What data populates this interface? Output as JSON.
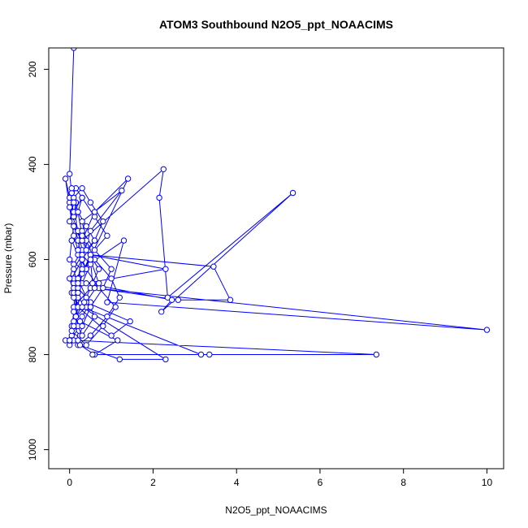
{
  "chart_data": {
    "type": "line",
    "title": "ATOM3 Southbound N2O5_ppt_NOAACIMS",
    "xlabel": "N2O5_ppt_NOAACIMS",
    "ylabel": "Pressure (mbar)",
    "xlim": [
      -0.5,
      10.4
    ],
    "ylim": [
      1040,
      155
    ],
    "y_reversed": true,
    "x_ticks": [
      0,
      2,
      4,
      6,
      8,
      10
    ],
    "x_tick_labels": [
      "0",
      "2",
      "4",
      "6",
      "8",
      "10"
    ],
    "y_ticks": [
      200,
      400,
      600,
      800,
      1000
    ],
    "y_tick_labels": [
      "200",
      "400",
      "600",
      "800",
      "1000"
    ],
    "grid": false,
    "legend": "none",
    "series": [
      {
        "color": "#0000ff",
        "marker": "open-circle",
        "x": [
          0.1,
          0.0,
          0.05,
          0.15,
          0.1,
          0.2,
          0.05,
          0.0,
          0.3,
          0.1,
          0.2,
          0.4,
          0.15,
          0.05,
          0.25,
          0.0,
          0.1,
          0.2,
          0.1,
          0.05,
          0.3,
          0.2,
          0.1,
          0.0,
          0.15,
          0.3,
          0.2,
          0.1,
          0.05,
          0.2,
          0.4,
          0.1,
          0.05,
          0.2,
          0.15,
          0.1,
          0.3,
          0.5,
          0.2,
          0.1,
          0.05,
          0.0,
          -0.1,
          0.0,
          0.1,
          0.2,
          0.3,
          0.1,
          0.0,
          0.1,
          0.2,
          0.1,
          0.05,
          0.3,
          0.5,
          0.2,
          0.1,
          0.3,
          0.6,
          0.4,
          0.2,
          0.1,
          0.3,
          0.5,
          0.8,
          0.6,
          0.3,
          0.2,
          0.4,
          0.6,
          0.3,
          0.2,
          0.1,
          0.5,
          0.7,
          0.4,
          0.2,
          0.1,
          0.3,
          0.6,
          0.9,
          0.5,
          0.3,
          0.2,
          0.1,
          0.05,
          0.4,
          0.8,
          1.1,
          0.7,
          0.4,
          0.2,
          0.3,
          0.6,
          1.0,
          0.8,
          0.5,
          0.3,
          0.2,
          0.5,
          0.9,
          1.2,
          1.0,
          0.6,
          0.4,
          0.3,
          1.25,
          0.5,
          0.3,
          0.2,
          1.4,
          0.6,
          0.3,
          2.25,
          2.15,
          2.35,
          5.35,
          2.2,
          2.45,
          0.4,
          2.3,
          0.5,
          3.45,
          3.85,
          2.6,
          0.6,
          10.0,
          0.9,
          1.3,
          0.3,
          0.2,
          1.0,
          1.45,
          0.4,
          0.7,
          0.5,
          0.3,
          0.0,
          0.1,
          0.05,
          0.2,
          0.3,
          0.5,
          0.55,
          0.35,
          0.15,
          0.1,
          0.0,
          -0.1,
          0.05,
          0.25,
          1.15,
          0.6,
          0.25,
          1.2,
          2.3,
          0.3,
          3.15,
          0.55,
          3.35,
          7.35,
          0.1,
          0.0,
          0.2
        ],
        "y": [
          155,
          420,
          460,
          480,
          510,
          540,
          560,
          600,
          620,
          650,
          680,
          700,
          720,
          740,
          760,
          780,
          750,
          700,
          660,
          640,
          600,
          560,
          520,
          480,
          450,
          470,
          500,
          530,
          560,
          590,
          620,
          640,
          670,
          700,
          720,
          680,
          650,
          610,
          580,
          550,
          520,
          490,
          430,
          470,
          500,
          540,
          580,
          610,
          640,
          670,
          700,
          730,
          760,
          720,
          690,
          660,
          620,
          590,
          560,
          530,
          500,
          470,
          450,
          480,
          520,
          560,
          600,
          640,
          680,
          720,
          760,
          740,
          700,
          660,
          620,
          580,
          540,
          500,
          470,
          510,
          550,
          590,
          630,
          670,
          710,
          750,
          780,
          740,
          700,
          660,
          620,
          580,
          540,
          580,
          620,
          660,
          700,
          740,
          780,
          760,
          720,
          680,
          640,
          600,
          560,
          520,
          455,
          540,
          600,
          650,
          430,
          500,
          560,
          410,
          470,
          680,
          460,
          710,
          685,
          650,
          620,
          590,
          615,
          685,
          685,
          660,
          748,
          690,
          560,
          620,
          700,
          760,
          730,
          690,
          650,
          600,
          560,
          520,
          480,
          450,
          500,
          550,
          600,
          650,
          690,
          720,
          740,
          770,
          770,
          770,
          730,
          770,
          800,
          780,
          810,
          810,
          700,
          800,
          800,
          800,
          800,
          770,
          770,
          770
        ]
      }
    ]
  }
}
